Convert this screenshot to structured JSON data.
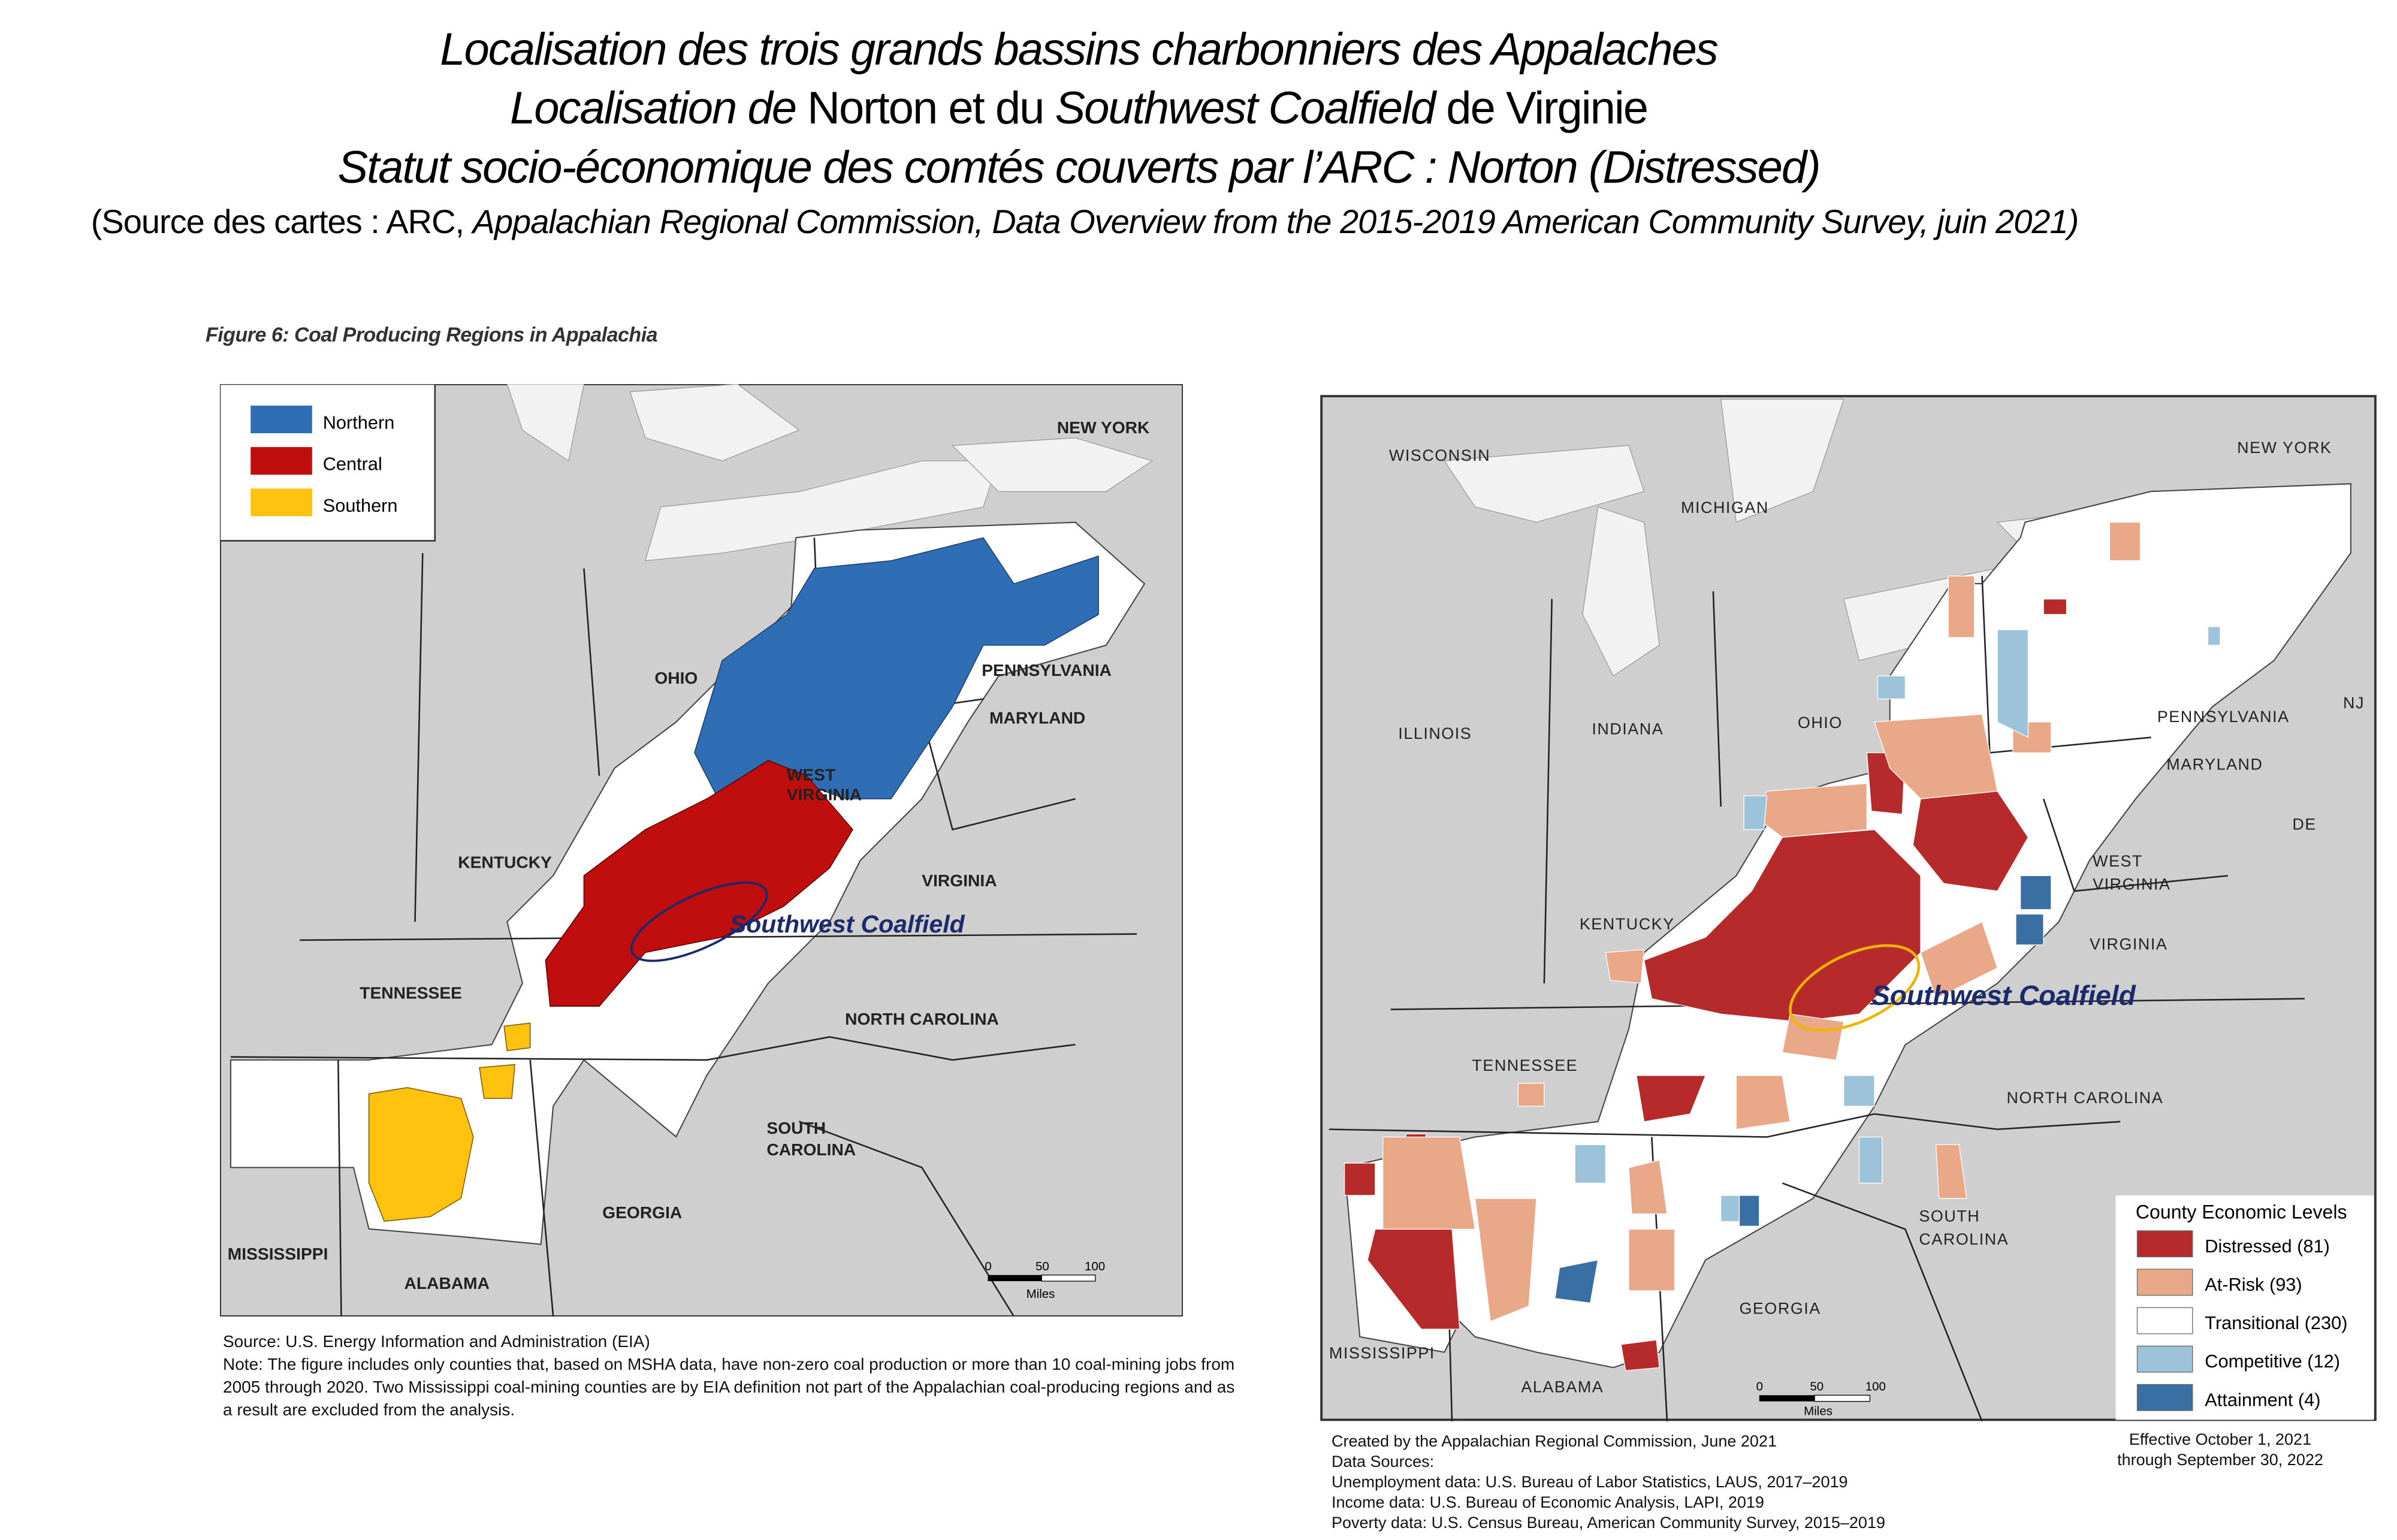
{
  "header": {
    "title_line1": "Localisation des trois grands bassins charbonniers des Appalaches",
    "title_line2_a": "Localisation de ",
    "title_line2_b": "Norton et du ",
    "title_line2_c": "Southwest Coalfield",
    "title_line2_d": " de Virginie",
    "title_line3": "Statut socio-économique des comtés couverts par l’ARC : Norton (Distressed)",
    "source_prefix": "(Source des cartes : ",
    "source_arc": "ARC, ",
    "source_italic": "Appalachian Regional Commission, Data Overview from the 2015-2019 American Community Survey, juin 2021)"
  },
  "left_map": {
    "figure_caption": "Figure 6: Coal Producing Regions in Appalachia",
    "legend": [
      {
        "label": "Northern",
        "color": "#2f6db5"
      },
      {
        "label": "Central",
        "color": "#c00d0d"
      },
      {
        "label": "Southern",
        "color": "#ffc20e"
      }
    ],
    "states": [
      "NEW YORK",
      "OHIO",
      "PENNSYLVANIA",
      "MARYLAND",
      "WEST",
      "VIRGINIA",
      "KENTUCKY",
      "VIRGINIA",
      "TENNESSEE",
      "NORTH CAROLINA",
      "SOUTH",
      "CAROLINA",
      "GEORGIA",
      "MISSISSIPPI",
      "ALABAMA"
    ],
    "annotation": "Southwest Coalfield",
    "scale": {
      "ticks": [
        "0",
        "50",
        "100"
      ],
      "unit": "Miles"
    },
    "source": "Source: U.S. Energy Information and Administration (EIA)",
    "note": "Note: The figure includes only counties that, based on MSHA data, have non-zero coal production or more than 10 coal-mining jobs from 2005 through 2020. Two Mississippi coal-mining counties are by EIA definition not part of the Appalachian coal-producing regions and as a result are excluded from the analysis."
  },
  "right_map": {
    "states": [
      "WISCONSIN",
      "MICHIGAN",
      "NEW YORK",
      "ILLINOIS",
      "INDIANA",
      "OHIO",
      "PENNSYLVANIA",
      "NJ",
      "MARYLAND",
      "DE",
      "WEST",
      "VIRGINIA",
      "KENTUCKY",
      "VIRGINIA",
      "TENNESSEE",
      "NORTH CAROLINA",
      "SOUTH",
      "CAROLINA",
      "GEORGIA",
      "MISSISSIPPI",
      "ALABAMA"
    ],
    "annotation": "Southwest Coalfield",
    "legend_title": "County Economic Levels",
    "legend": [
      {
        "label": "Distressed (81)",
        "color": "#b72a2c"
      },
      {
        "label": "At-Risk (93)",
        "color": "#e9a888"
      },
      {
        "label": "Transitional (230)",
        "color": "#ffffff"
      },
      {
        "label": "Competitive (12)",
        "color": "#9dc3db"
      },
      {
        "label": "Attainment (4)",
        "color": "#3a6fa3"
      }
    ],
    "scale": {
      "ticks": [
        "0",
        "50",
        "100"
      ],
      "unit": "Miles"
    },
    "footer": [
      "Created by the Appalachian Regional Commission, June 2021",
      "Data Sources:",
      "Unemployment data: U.S. Bureau of Labor Statistics, LAUS, 2017–2019",
      "Income data: U.S. Bureau of Economic Analysis, LAPI, 2019",
      "Poverty data: U.S. Census Bureau, American Community Survey, 2015–2019"
    ],
    "effective": [
      "Effective October 1, 2021",
      "through September 30, 2022"
    ]
  }
}
